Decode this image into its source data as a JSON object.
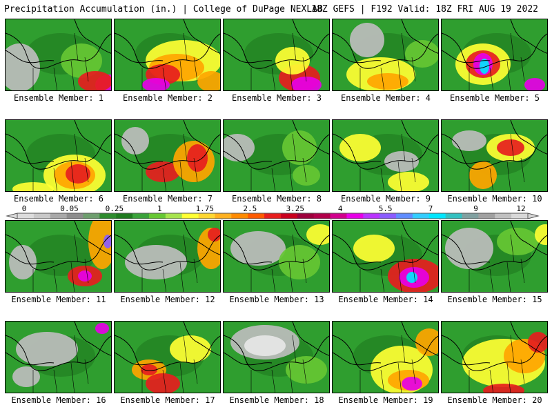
{
  "header": {
    "left": "Precipitation Accumulation (in.) | College of DuPage NEXLAB",
    "right": "18Z GEFS | F192 Valid: 18Z FRI AUG 19 2022"
  },
  "colors": {
    "zero": "#e6e6e6",
    "light_gray": "#bdbdbd",
    "gray": "#8c8c8c",
    "dark_green": "#1f7a1f",
    "green": "#2f9e2f",
    "light_green": "#66c733",
    "yellow": "#ffff33",
    "orange": "#ffa500",
    "red": "#e61e1e",
    "dark_red": "#b0004a",
    "magenta": "#e600e6",
    "purple": "#8a5cff",
    "cyan": "#00e5ff",
    "outline": "#000000"
  },
  "legend": {
    "ticks": [
      "0",
      "0.05",
      "0.25",
      "1",
      "1.75",
      "2.5",
      "3.25",
      "4",
      "5.5",
      "7",
      "9",
      "12"
    ],
    "swatches": [
      "#dcdcdc",
      "#c8c8c8",
      "#a8a8a8",
      "#8c8c8c",
      "#6e9e6e",
      "#2e8b2e",
      "#1f7a1f",
      "#3aa23a",
      "#66c733",
      "#a6e34d",
      "#ffff33",
      "#ffd633",
      "#ffb020",
      "#ff8a00",
      "#ff5a00",
      "#e61e1e",
      "#c8001e",
      "#9c003c",
      "#b0004a",
      "#d0008c",
      "#e600e6",
      "#b833ff",
      "#8a5cff",
      "#5f8cff",
      "#33ccff",
      "#00e5ff",
      "#33c0c0",
      "#80a0a0",
      "#a0a0a0",
      "#c0c0c0",
      "#d8d8d8"
    ]
  },
  "members": [
    {
      "label": "Ensemble Member: 1"
    },
    {
      "label": "Ensemble Member: 2"
    },
    {
      "label": "Ensemble Member: 3"
    },
    {
      "label": "Ensemble Member: 4"
    },
    {
      "label": "Ensemble Member: 5"
    },
    {
      "label": "Ensemble Member: 6"
    },
    {
      "label": "Ensemble Member: 7"
    },
    {
      "label": "Ensemble Member: 8"
    },
    {
      "label": "Ensemble Member: 9"
    },
    {
      "label": "Ensemble Member: 10"
    },
    {
      "label": "Ensemble Member: 11"
    },
    {
      "label": "Ensemble Member: 12"
    },
    {
      "label": "Ensemble Member: 13"
    },
    {
      "label": "Ensemble Member: 14"
    },
    {
      "label": "Ensemble Member: 15"
    },
    {
      "label": "Ensemble Member: 16"
    },
    {
      "label": "Ensemble Member: 17"
    },
    {
      "label": "Ensemble Member: 18"
    },
    {
      "label": "Ensemble Member: 19"
    },
    {
      "label": "Ensemble Member: 20"
    }
  ]
}
